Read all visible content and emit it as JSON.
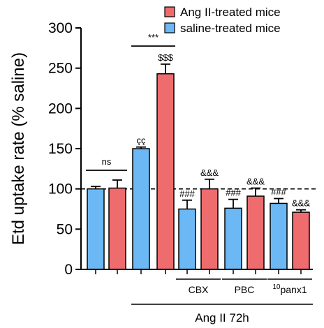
{
  "chart_data": {
    "type": "bar",
    "ylabel": "Etd uptake rate (% saline)",
    "ylim": [
      0,
      300
    ],
    "yticks": [
      0,
      50,
      100,
      150,
      200,
      250,
      300
    ],
    "reference_line": 100,
    "legend": [
      {
        "name": "Ang II-treated mice",
        "color": "#EE6B6E"
      },
      {
        "name": "saline-treated mice",
        "color": "#6BB8F5"
      }
    ],
    "bars": [
      {
        "series": "saline-treated mice",
        "value": 100,
        "error": 3,
        "label": ""
      },
      {
        "series": "Ang II-treated mice",
        "value": 101,
        "error": 10,
        "label": ""
      },
      {
        "series": "saline-treated mice",
        "value": 150,
        "error": 2,
        "label": "çç"
      },
      {
        "series": "Ang II-treated mice",
        "value": 243,
        "error": 12,
        "label": "$$$"
      },
      {
        "series": "saline-treated mice",
        "value": 75,
        "error": 11,
        "label": "###"
      },
      {
        "series": "Ang II-treated mice",
        "value": 100,
        "error": 12,
        "label": "&&&"
      },
      {
        "series": "saline-treated mice",
        "value": 76,
        "error": 11,
        "label": "###"
      },
      {
        "series": "Ang II-treated mice",
        "value": 91,
        "error": 10,
        "label": "&&&"
      },
      {
        "series": "saline-treated mice",
        "value": 82,
        "error": 6,
        "label": "###"
      },
      {
        "series": "Ang II-treated mice",
        "value": 71,
        "error": 3,
        "label": "&&&"
      }
    ],
    "comparisons": [
      {
        "from_bar": 0,
        "to_bar": 1,
        "label": "ns"
      },
      {
        "from_bar": 2,
        "to_bar": 3,
        "label": "***"
      }
    ],
    "treatment_groups": [
      {
        "bars": [
          4,
          5
        ],
        "label": "CBX"
      },
      {
        "bars": [
          6,
          7
        ],
        "label": "PBC"
      },
      {
        "bars": [
          8,
          9
        ],
        "label_sup": "10",
        "label": "panx1"
      }
    ],
    "xlabel": "Ang II 72h",
    "xlabel_bars": [
      2,
      9
    ]
  }
}
